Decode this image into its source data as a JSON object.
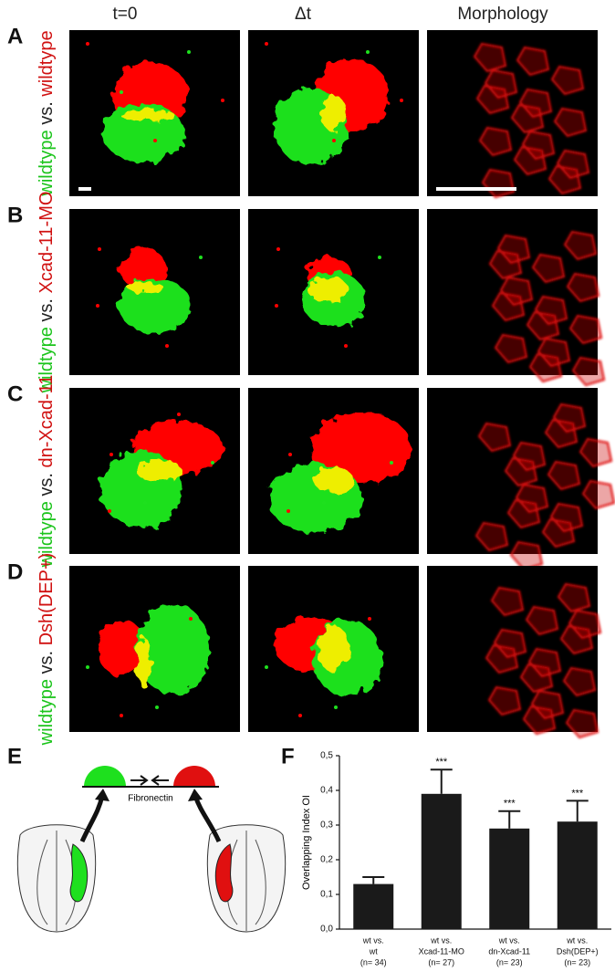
{
  "column_headers": [
    "t=0",
    "Δt",
    "Morphology"
  ],
  "rows": [
    {
      "letter": "A",
      "label": {
        "left": "wildtype",
        "middle": "vs.",
        "right": "wildtype"
      }
    },
    {
      "letter": "B",
      "label": {
        "left": "wildtype",
        "middle": "vs.",
        "right": "Xcad-11-MO"
      }
    },
    {
      "letter": "C",
      "label": {
        "left": "wildtype",
        "middle": "vs.",
        "right": "dn-Xcad-11"
      }
    },
    {
      "letter": "D",
      "label": {
        "left": "wildtype",
        "middle": "vs.",
        "right": "Dsh(DEP+)"
      }
    }
  ],
  "panel_e": {
    "letter": "E",
    "substrate": "Fibronectin"
  },
  "chart_data": {
    "type": "bar",
    "letter": "F",
    "y_label": "Overlapping Index OI",
    "categories": [
      [
        "wt vs.",
        "wt",
        "(n= 34)"
      ],
      [
        "wt vs.",
        "Xcad-11-MO",
        "(n= 27)"
      ],
      [
        "wt vs.",
        "dn-Xcad-11",
        "(n= 23)"
      ],
      [
        "wt vs.",
        "Dsh(DEP+)",
        "(n= 23)"
      ]
    ],
    "values": [
      0.13,
      0.39,
      0.29,
      0.31
    ],
    "errors": [
      0.02,
      0.07,
      0.05,
      0.06
    ],
    "significance": [
      null,
      "***",
      "***",
      "***"
    ],
    "color": "#1a1a1a",
    "ylim": [
      0,
      0.5
    ],
    "yticks": [
      {
        "value": 0,
        "label": "0,0"
      },
      {
        "value": 0.1,
        "label": "0,1"
      },
      {
        "value": 0.2,
        "label": "0,2"
      },
      {
        "value": 0.3,
        "label": "0,3"
      },
      {
        "value": 0.4,
        "label": "0,4"
      },
      {
        "value": 0.5,
        "label": "0,5"
      }
    ]
  }
}
